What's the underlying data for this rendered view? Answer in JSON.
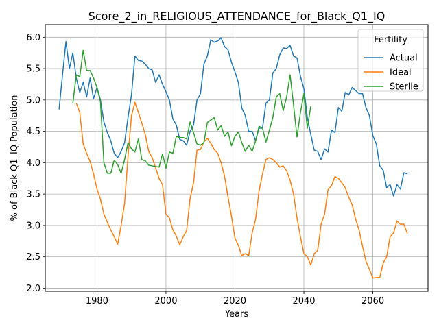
{
  "chart_data": {
    "type": "line",
    "title": "Score_2_in_RELIGIOUS_ATTENDANCE_for_Black_Q1_IQ",
    "xlabel": "Years",
    "ylabel": "% of Black Q1_IQ Population",
    "xlim": [
      1965,
      2076
    ],
    "ylim": [
      1.95,
      6.2
    ],
    "xticks": [
      1980,
      2000,
      2020,
      2040,
      2060
    ],
    "yticks": [
      2.0,
      2.5,
      3.0,
      3.5,
      4.0,
      4.5,
      5.0,
      5.5,
      6.0
    ],
    "xtick_labels": [
      "1980",
      "2000",
      "2020",
      "2040",
      "2060"
    ],
    "ytick_labels": [
      "2.0",
      "2.5",
      "3.0",
      "3.5",
      "4.0",
      "4.5",
      "5.0",
      "5.5",
      "6.0"
    ],
    "grid": true,
    "legend": {
      "title": "Fertility",
      "position": "top-right"
    },
    "series": [
      {
        "name": "Actual",
        "color": "#1f77b4",
        "x": [
          1969,
          1970,
          1971,
          1972,
          1973,
          1974,
          1975,
          1976,
          1977,
          1978,
          1979,
          1980,
          1981,
          1982,
          1983,
          1984,
          1985,
          1986,
          1987,
          1988,
          1989,
          1990,
          1991,
          1992,
          1993,
          1994,
          1995,
          1996,
          1997,
          1998,
          1999,
          2000,
          2001,
          2002,
          2003,
          2004,
          2005,
          2006,
          2007,
          2008,
          2009,
          2010,
          2011,
          2012,
          2013,
          2014,
          2015,
          2016,
          2017,
          2018,
          2019,
          2020,
          2021,
          2022,
          2023,
          2024,
          2025,
          2026,
          2027,
          2028,
          2029,
          2030,
          2031,
          2032,
          2033,
          2034,
          2035,
          2036,
          2037,
          2038,
          2039,
          2040,
          2041,
          2042,
          2043,
          2044,
          2045,
          2046,
          2047,
          2048,
          2049,
          2050,
          2051,
          2052,
          2053,
          2054,
          2055,
          2056,
          2057,
          2058,
          2059,
          2060,
          2061,
          2062,
          2063,
          2064,
          2065,
          2066,
          2067,
          2068,
          2069,
          2070
        ],
        "y": [
          4.85,
          5.4,
          5.93,
          5.5,
          5.75,
          5.35,
          5.12,
          5.28,
          5.05,
          5.35,
          5.02,
          5.2,
          5.0,
          4.65,
          4.48,
          4.35,
          4.15,
          4.08,
          4.18,
          4.32,
          4.72,
          5.08,
          5.7,
          5.63,
          5.62,
          5.57,
          5.5,
          5.48,
          5.28,
          5.4,
          5.25,
          5.13,
          5.0,
          4.7,
          4.6,
          4.37,
          4.35,
          4.28,
          4.5,
          4.6,
          5.0,
          5.1,
          5.57,
          5.7,
          5.96,
          5.92,
          5.94,
          5.99,
          5.85,
          5.8,
          5.6,
          5.45,
          5.28,
          4.87,
          4.75,
          4.5,
          4.5,
          4.35,
          4.55,
          4.55,
          4.95,
          5.0,
          5.43,
          5.5,
          5.72,
          5.83,
          5.82,
          5.87,
          5.7,
          5.67,
          5.38,
          5.18,
          4.72,
          4.45,
          4.2,
          4.18,
          4.05,
          4.22,
          4.17,
          4.52,
          4.48,
          4.88,
          4.82,
          5.12,
          5.08,
          5.2,
          5.15,
          5.1,
          5.1,
          4.88,
          4.75,
          4.43,
          4.3,
          3.95,
          3.88,
          3.6,
          3.65,
          3.47,
          3.65,
          3.58,
          3.84,
          3.82
        ]
      },
      {
        "name": "Ideal",
        "color": "#ff7f0e",
        "x": [
          1974,
          1975,
          1976,
          1977,
          1978,
          1979,
          1980,
          1981,
          1982,
          1983,
          1984,
          1985,
          1986,
          1987,
          1988,
          1989,
          1990,
          1991,
          1992,
          1993,
          1994,
          1995,
          1996,
          1997,
          1998,
          1999,
          2000,
          2001,
          2002,
          2003,
          2004,
          2005,
          2006,
          2007,
          2008,
          2009,
          2010,
          2011,
          2012,
          2013,
          2014,
          2015,
          2016,
          2017,
          2018,
          2019,
          2020,
          2021,
          2022,
          2023,
          2024,
          2025,
          2026,
          2027,
          2028,
          2029,
          2030,
          2031,
          2032,
          2033,
          2034,
          2035,
          2036,
          2037,
          2038,
          2039,
          2040,
          2041,
          2042,
          2043,
          2044,
          2045,
          2046,
          2047,
          2048,
          2049,
          2050,
          2051,
          2052,
          2053,
          2054,
          2055,
          2056,
          2057,
          2058,
          2059,
          2060,
          2061,
          2062,
          2063,
          2064,
          2065,
          2066,
          2067,
          2068,
          2069,
          2070
        ],
        "y": [
          4.95,
          4.8,
          4.3,
          4.15,
          4.02,
          3.82,
          3.58,
          3.42,
          3.18,
          3.05,
          2.93,
          2.82,
          2.7,
          3.0,
          3.35,
          4.1,
          4.75,
          4.96,
          4.8,
          4.63,
          4.45,
          4.18,
          4.08,
          3.92,
          3.75,
          3.65,
          3.18,
          3.12,
          2.93,
          2.83,
          2.69,
          2.82,
          2.92,
          3.43,
          3.68,
          4.2,
          4.21,
          4.33,
          4.39,
          4.31,
          4.21,
          4.15,
          4.0,
          3.78,
          3.45,
          3.15,
          2.8,
          2.68,
          2.52,
          2.55,
          2.52,
          2.88,
          3.1,
          3.55,
          3.82,
          4.05,
          4.08,
          4.05,
          4.0,
          3.93,
          3.95,
          3.87,
          3.72,
          3.5,
          3.12,
          2.82,
          2.55,
          2.5,
          2.37,
          2.55,
          2.6,
          3.02,
          3.18,
          3.57,
          3.63,
          3.78,
          3.75,
          3.68,
          3.6,
          3.45,
          3.33,
          3.1,
          2.93,
          2.67,
          2.43,
          2.3,
          2.16,
          2.17,
          2.17,
          2.4,
          2.5,
          2.82,
          2.88,
          3.07,
          3.02,
          3.02,
          2.87
        ]
      },
      {
        "name": "Sterile",
        "color": "#2ca02c",
        "x": [
          1973,
          1974,
          1975,
          1976,
          1977,
          1978,
          1979,
          1980,
          1981,
          1982,
          1983,
          1984,
          1985,
          1986,
          1987,
          1988,
          1989,
          1990,
          1991,
          1992,
          1993,
          1994,
          1995,
          1996,
          1997,
          1998,
          1999,
          2000,
          2001,
          2002,
          2003,
          2004,
          2005,
          2006,
          2007,
          2008,
          2009,
          2010,
          2011,
          2012,
          2013,
          2014,
          2015,
          2016,
          2017,
          2018,
          2019,
          2020,
          2021,
          2022,
          2023,
          2024,
          2025,
          2026,
          2027,
          2028,
          2029,
          2030,
          2031,
          2032,
          2033,
          2034,
          2035,
          2036,
          2037,
          2038,
          2039,
          2040,
          2041,
          2042
        ],
        "y": [
          4.95,
          5.4,
          5.37,
          5.79,
          5.47,
          5.47,
          5.35,
          5.2,
          4.97,
          4.0,
          3.83,
          3.83,
          4.04,
          3.97,
          3.83,
          4.05,
          4.32,
          4.22,
          4.17,
          4.38,
          4.05,
          4.03,
          3.96,
          3.95,
          3.94,
          3.93,
          4.14,
          3.91,
          4.17,
          4.15,
          4.42,
          4.4,
          4.4,
          4.38,
          4.65,
          4.48,
          4.3,
          4.28,
          4.32,
          4.64,
          4.68,
          4.72,
          4.52,
          4.59,
          4.42,
          4.49,
          4.27,
          4.42,
          4.49,
          4.32,
          4.18,
          4.28,
          4.18,
          4.35,
          4.58,
          4.55,
          4.33,
          4.52,
          4.72,
          5.05,
          5.1,
          4.83,
          5.05,
          5.4,
          4.92,
          4.41,
          4.8,
          5.1,
          4.55,
          4.9
        ]
      }
    ]
  }
}
